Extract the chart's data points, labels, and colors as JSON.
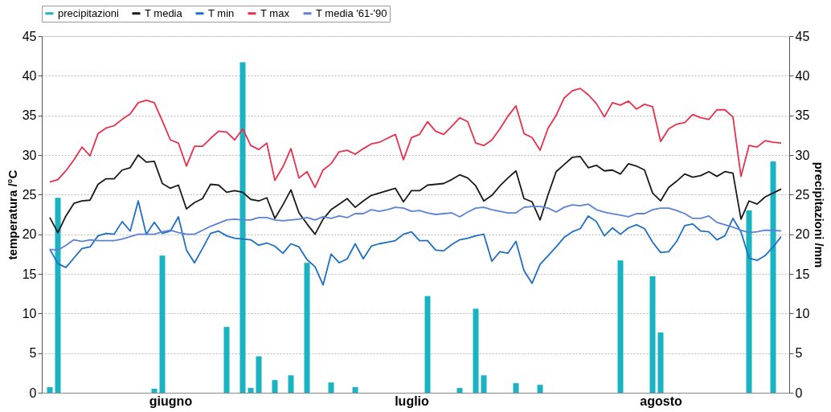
{
  "chart_data": {
    "type": "line",
    "categories": [
      null,
      null,
      null,
      null,
      null,
      null,
      null,
      null,
      null,
      null,
      null,
      null,
      null,
      null,
      null,
      "giugno",
      null,
      null,
      null,
      null,
      null,
      null,
      null,
      null,
      null,
      null,
      null,
      null,
      null,
      null,
      null,
      null,
      null,
      null,
      null,
      null,
      null,
      null,
      null,
      null,
      null,
      null,
      null,
      null,
      null,
      "luglio",
      null,
      null,
      null,
      null,
      null,
      null,
      null,
      null,
      null,
      null,
      null,
      null,
      null,
      null,
      null,
      null,
      null,
      null,
      null,
      null,
      null,
      null,
      null,
      null,
      null,
      null,
      null,
      null,
      null,
      null,
      "agosto",
      null,
      null,
      null,
      null,
      null,
      null,
      null,
      null,
      null,
      null,
      null,
      null,
      null,
      null,
      null
    ],
    "series": [
      {
        "name": "precipitazioni",
        "type": "bar",
        "axis": "y2",
        "color": "#1ab3c3",
        "values": [
          0.7,
          24.6,
          null,
          null,
          null,
          null,
          null,
          null,
          null,
          null,
          null,
          null,
          null,
          0.5,
          17.3,
          null,
          null,
          null,
          null,
          null,
          null,
          null,
          8.3,
          null,
          41.7,
          0.6,
          4.6,
          null,
          1.6,
          null,
          2.2,
          null,
          16.4,
          null,
          null,
          1.3,
          null,
          null,
          0.7,
          null,
          null,
          null,
          null,
          null,
          null,
          null,
          null,
          12.2,
          null,
          null,
          null,
          0.6,
          null,
          10.6,
          2.2,
          null,
          null,
          null,
          1.2,
          null,
          null,
          1.0,
          null,
          null,
          null,
          null,
          null,
          null,
          null,
          null,
          null,
          16.7,
          null,
          null,
          null,
          14.7,
          7.6,
          null,
          null,
          null,
          null,
          null,
          null,
          null,
          null,
          null,
          null,
          23.0,
          null,
          null,
          29.2,
          null
        ]
      },
      {
        "name": "T media",
        "color": "#1a1a1a",
        "values": [
          22.1,
          20.2,
          22.3,
          23.9,
          24.2,
          24.3,
          26.3,
          27.0,
          27.0,
          28.1,
          28.4,
          30.0,
          29.1,
          29.2,
          26.4,
          25.8,
          26.2,
          23.2,
          24.0,
          24.5,
          26.3,
          26.2,
          25.3,
          25.5,
          25.3,
          24.4,
          24.2,
          24.6,
          22.0,
          23.7,
          25.6,
          22.7,
          21.3,
          20.0,
          21.9,
          23.1,
          23.8,
          24.5,
          23.4,
          24.2,
          24.9,
          25.2,
          25.5,
          25.8,
          24.1,
          25.5,
          25.5,
          26.2,
          26.3,
          26.4,
          26.9,
          27.5,
          27.1,
          26.1,
          24.2,
          24.9,
          26.1,
          27.1,
          28.0,
          24.5,
          24.1,
          21.8,
          25.0,
          27.9,
          28.8,
          29.7,
          29.8,
          28.4,
          28.7,
          28.0,
          28.1,
          27.6,
          28.9,
          28.6,
          28.1,
          25.2,
          24.2,
          25.9,
          26.7,
          27.6,
          27.2,
          27.4,
          27.9,
          27.3,
          27.9,
          27.7,
          21.9,
          24.2,
          23.8,
          24.7,
          25.2,
          25.7
        ]
      },
      {
        "name": "T min",
        "color": "#1f6fc4",
        "values": [
          18.1,
          16.3,
          15.8,
          17.0,
          18.2,
          18.4,
          19.8,
          20.1,
          20.0,
          21.6,
          20.4,
          24.2,
          20.0,
          21.5,
          20.1,
          20.4,
          22.2,
          18.0,
          16.4,
          18.2,
          20.1,
          20.4,
          19.8,
          19.5,
          19.4,
          19.3,
          18.6,
          18.9,
          18.5,
          17.6,
          18.8,
          18.4,
          16.8,
          15.9,
          13.6,
          17.5,
          16.4,
          16.9,
          18.8,
          16.9,
          18.5,
          18.8,
          19.0,
          19.2,
          20.0,
          20.3,
          19.2,
          19.2,
          18.0,
          17.9,
          18.7,
          19.3,
          19.5,
          19.8,
          20.0,
          16.6,
          17.8,
          17.6,
          19.1,
          15.4,
          13.8,
          16.2,
          17.3,
          18.4,
          19.6,
          20.3,
          20.7,
          22.3,
          21.6,
          19.8,
          20.8,
          20.0,
          20.8,
          21.2,
          20.7,
          19.0,
          17.7,
          17.8,
          19.1,
          21.1,
          21.3,
          20.4,
          20.3,
          19.3,
          19.8,
          22.0,
          20.3,
          17.0,
          16.7,
          17.3,
          18.4,
          19.7
        ]
      },
      {
        "name": "T max",
        "color": "#e8304a",
        "values": [
          26.6,
          26.9,
          28.0,
          29.4,
          31.0,
          29.9,
          32.7,
          33.4,
          33.7,
          34.5,
          35.2,
          36.6,
          36.9,
          36.6,
          34.3,
          31.9,
          31.5,
          28.6,
          31.1,
          31.1,
          32.1,
          33.0,
          32.9,
          31.9,
          33.3,
          31.2,
          30.7,
          31.5,
          26.8,
          28.5,
          30.8,
          27.1,
          27.9,
          25.9,
          28.1,
          28.9,
          30.4,
          30.6,
          30.1,
          30.8,
          31.4,
          31.6,
          32.1,
          32.6,
          29.4,
          32.2,
          32.6,
          34.2,
          33.0,
          32.6,
          33.6,
          34.7,
          34.2,
          31.5,
          31.2,
          31.9,
          33.3,
          34.9,
          36.2,
          32.7,
          32.2,
          30.6,
          33.4,
          35.0,
          37.2,
          38.1,
          38.4,
          37.6,
          36.5,
          34.8,
          36.6,
          36.3,
          36.8,
          35.8,
          36.4,
          36.1,
          31.7,
          33.3,
          33.9,
          34.1,
          35.1,
          34.7,
          34.5,
          35.7,
          35.7,
          34.8,
          27.3,
          31.2,
          31.0,
          31.8,
          31.6,
          31.5
        ]
      },
      {
        "name": "T media '61-'90",
        "color": "#5b82d6",
        "values": [
          18.1,
          18.0,
          18.6,
          19.3,
          19.1,
          19.3,
          19.2,
          19.2,
          19.2,
          19.4,
          19.7,
          20.0,
          20.0,
          20.0,
          20.3,
          20.5,
          20.2,
          20.0,
          20.0,
          20.5,
          21.0,
          21.4,
          21.8,
          21.9,
          21.8,
          21.8,
          22.1,
          22.1,
          21.8,
          21.7,
          21.8,
          21.9,
          22.1,
          21.8,
          22.2,
          22.0,
          22.3,
          22.1,
          22.6,
          22.6,
          23.1,
          22.9,
          23.1,
          23.4,
          23.3,
          22.9,
          23.0,
          22.7,
          22.5,
          22.6,
          22.7,
          22.2,
          22.8,
          23.3,
          23.4,
          23.1,
          22.9,
          22.7,
          22.7,
          23.4,
          23.5,
          23.5,
          23.3,
          22.8,
          23.4,
          23.7,
          23.6,
          23.8,
          23.1,
          22.8,
          22.6,
          22.4,
          22.2,
          22.6,
          22.6,
          23.1,
          23.3,
          23.3,
          23.0,
          22.6,
          22.0,
          22.0,
          22.3,
          21.5,
          21.2,
          20.9,
          20.5,
          20.2,
          20.3,
          20.5,
          20.5,
          20.4
        ]
      }
    ],
    "ylabel": "temperatura /°C",
    "y2label": "precipitazioni /mm",
    "ylim": [
      0,
      45
    ],
    "yticks": [
      0,
      5,
      10,
      15,
      20,
      25,
      30,
      35,
      40,
      45
    ],
    "y2lim": [
      0,
      45
    ],
    "y2ticks": [
      0,
      5,
      10,
      15,
      20,
      25,
      30,
      35,
      40,
      45
    ],
    "grid": "y",
    "legend": "top",
    "marker": "none",
    "line_style": "solid"
  }
}
